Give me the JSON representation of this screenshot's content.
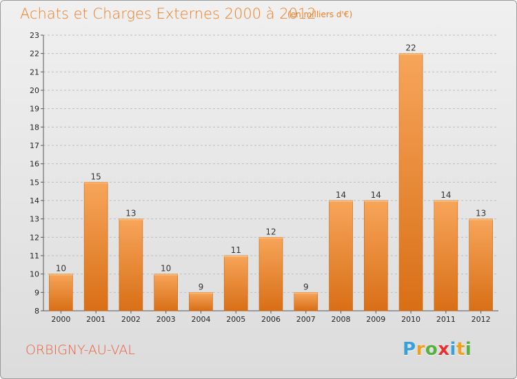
{
  "chart_data": {
    "type": "bar",
    "title": "Achats et Charges Externes 2000 à 2012",
    "subtitle": "(en milliers d'€)",
    "categories": [
      "2000",
      "2001",
      "2002",
      "2003",
      "2004",
      "2005",
      "2006",
      "2007",
      "2008",
      "2009",
      "2010",
      "2011",
      "2012"
    ],
    "values": [
      10,
      15,
      13,
      10,
      9,
      11,
      12,
      9,
      14,
      14,
      22,
      14,
      13
    ],
    "ylim": [
      8,
      23
    ],
    "yticks": [
      8,
      9,
      10,
      11,
      12,
      13,
      14,
      15,
      16,
      17,
      18,
      19,
      20,
      21,
      22,
      23
    ],
    "grid": "horizontal dashed",
    "bar_color": "#f0933c"
  },
  "footer": {
    "commune": "ORBIGNY-AU-VAL",
    "logo_letters": [
      "P",
      "r",
      "o",
      "x",
      "i",
      "t",
      "i"
    ],
    "logo_colors": [
      "#3aa0d8",
      "#f0a020",
      "#58b040",
      "#e83030",
      "#3aa0d8",
      "#f0a020",
      "#58b040"
    ]
  }
}
